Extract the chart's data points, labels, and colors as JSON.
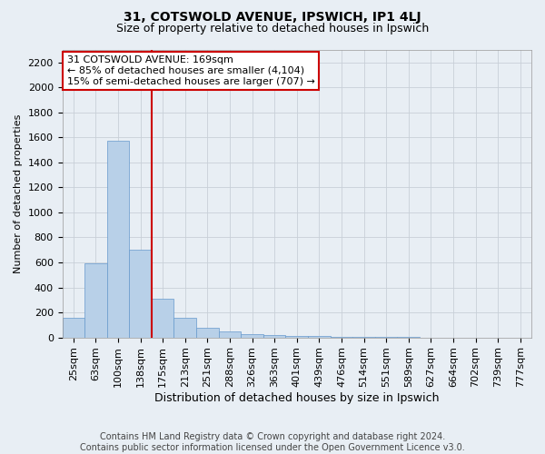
{
  "title1": "31, COTSWOLD AVENUE, IPSWICH, IP1 4LJ",
  "title2": "Size of property relative to detached houses in Ipswich",
  "xlabel": "Distribution of detached houses by size in Ipswich",
  "ylabel": "Number of detached properties",
  "footnote1": "Contains HM Land Registry data © Crown copyright and database right 2024.",
  "footnote2": "Contains public sector information licensed under the Open Government Licence v3.0.",
  "annotation_line1": "31 COTSWOLD AVENUE: 169sqm",
  "annotation_line2": "← 85% of detached houses are smaller (4,104)",
  "annotation_line3": "15% of semi-detached houses are larger (707) →",
  "bar_color": "#b8d0e8",
  "bar_edge_color": "#6699cc",
  "vline_color": "#cc0000",
  "annotation_box_edgecolor": "#cc0000",
  "fig_background_color": "#e8eef4",
  "plot_background_color": "#e8eef4",
  "categories": [
    "25sqm",
    "63sqm",
    "100sqm",
    "138sqm",
    "175sqm",
    "213sqm",
    "251sqm",
    "288sqm",
    "326sqm",
    "363sqm",
    "401sqm",
    "439sqm",
    "476sqm",
    "514sqm",
    "551sqm",
    "589sqm",
    "627sqm",
    "664sqm",
    "702sqm",
    "739sqm",
    "777sqm"
  ],
  "values": [
    155,
    590,
    1570,
    700,
    310,
    155,
    80,
    45,
    25,
    20,
    15,
    10,
    5,
    2,
    1,
    1,
    0,
    0,
    0,
    0,
    0
  ],
  "ylim": [
    0,
    2300
  ],
  "yticks": [
    0,
    200,
    400,
    600,
    800,
    1000,
    1200,
    1400,
    1600,
    1800,
    2000,
    2200
  ],
  "grid_color": "#c8d0d8",
  "title1_fontsize": 10,
  "title2_fontsize": 9,
  "xlabel_fontsize": 9,
  "ylabel_fontsize": 8,
  "tick_fontsize": 8,
  "annot_fontsize": 8,
  "footnote_fontsize": 7
}
